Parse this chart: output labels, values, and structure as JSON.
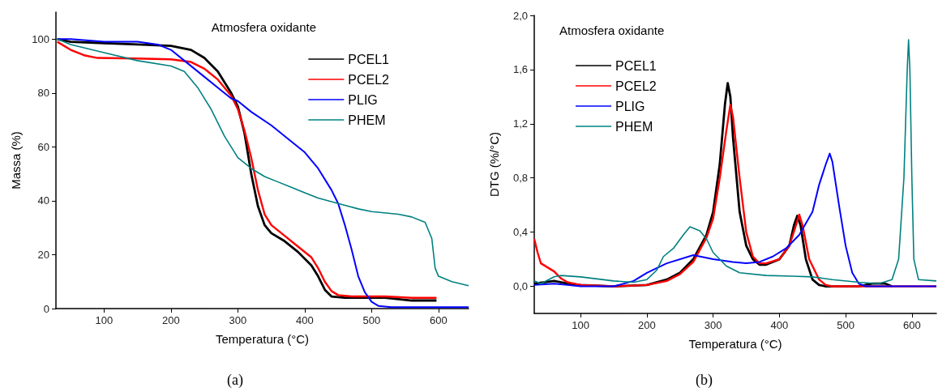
{
  "chart_data": [
    {
      "type": "line",
      "xlabel": "Temperatura (°C)",
      "ylabel": "Massa (%)",
      "annotations": [
        "Atmosfera oxidante",
        "(a)"
      ],
      "xlim": [
        28,
        645
      ],
      "ylim": [
        0,
        110
      ],
      "xticks": [
        100,
        200,
        300,
        400,
        500,
        600
      ],
      "yticks": [
        0,
        20,
        40,
        60,
        80,
        100
      ],
      "grid": false,
      "legend": "top right",
      "marker": "none",
      "line_style": "solid",
      "series": [
        {
          "name": "PCEL1",
          "color": "#000000",
          "x": [
            30,
            50,
            100,
            150,
            200,
            230,
            250,
            270,
            290,
            300,
            310,
            320,
            330,
            340,
            350,
            370,
            390,
            410,
            420,
            430,
            440,
            460,
            500,
            520,
            560,
            597
          ],
          "values": [
            100,
            99,
            98.5,
            98,
            97.5,
            96,
            93,
            88,
            80,
            75,
            65,
            50,
            38,
            31,
            28,
            25,
            21,
            16,
            12,
            7,
            4.5,
            4,
            4,
            4,
            3,
            3
          ]
        },
        {
          "name": "PCEL2",
          "color": "#ff0000",
          "x": [
            30,
            50,
            70,
            90,
            150,
            200,
            230,
            250,
            270,
            290,
            300,
            310,
            320,
            330,
            340,
            350,
            370,
            390,
            410,
            420,
            430,
            440,
            450,
            470,
            520,
            560,
            597
          ],
          "values": [
            99,
            96,
            94,
            93,
            92.8,
            92.5,
            91.5,
            89,
            85,
            79,
            74,
            66,
            56,
            44,
            35,
            31,
            27,
            23,
            19,
            15,
            10,
            6.5,
            5,
            4.5,
            4.5,
            4,
            4
          ]
        },
        {
          "name": "PLIG",
          "color": "#0000ff",
          "x": [
            30,
            50,
            100,
            150,
            180,
            200,
            220,
            250,
            270,
            290,
            300,
            320,
            350,
            380,
            400,
            420,
            440,
            450,
            460,
            470,
            480,
            490,
            500,
            510,
            530,
            645
          ],
          "values": [
            100,
            100,
            99,
            99,
            98,
            96,
            92,
            86,
            82,
            78,
            77,
            73,
            68,
            62,
            58,
            52,
            44,
            39,
            31,
            22,
            12,
            6,
            2.5,
            1,
            0.5,
            0.5
          ]
        },
        {
          "name": "PHEM",
          "color": "#008080",
          "x": [
            30,
            50,
            100,
            150,
            200,
            220,
            240,
            260,
            280,
            300,
            320,
            340,
            360,
            380,
            400,
            420,
            450,
            480,
            500,
            540,
            560,
            580,
            590,
            595,
            600,
            620,
            645
          ],
          "values": [
            100,
            98,
            95,
            92,
            90,
            88,
            82,
            74,
            64,
            56,
            52,
            49,
            47,
            45,
            43,
            41,
            39,
            37,
            36,
            35,
            34,
            32,
            26,
            15,
            12,
            10,
            8.5
          ]
        }
      ]
    },
    {
      "type": "line",
      "xlabel": "Temperatura (°C)",
      "ylabel": "DTG (%/°C)",
      "annotations": [
        "Atmosfera oxidante",
        "(b)"
      ],
      "xlim": [
        30,
        637
      ],
      "ylim": [
        -0.2,
        2.0
      ],
      "xticks": [
        100,
        200,
        300,
        400,
        500,
        600
      ],
      "yticks": [
        {
          "value": 0,
          "label": "0,0"
        },
        {
          "value": 0.4,
          "label": "0,4"
        },
        {
          "value": 0.8,
          "label": "0,8"
        },
        {
          "value": 1.2,
          "label": "1,2"
        },
        {
          "value": 1.6,
          "label": "1,6"
        },
        {
          "value": 2.0,
          "label": "2,0"
        }
      ],
      "grid": false,
      "legend": "top left",
      "marker": "none",
      "line_style": "solid",
      "series": [
        {
          "name": "PCEL1",
          "color": "#000000",
          "x": [
            30,
            60,
            80,
            100,
            150,
            200,
            230,
            250,
            270,
            290,
            300,
            310,
            318,
            322,
            326,
            330,
            340,
            350,
            360,
            370,
            380,
            400,
            415,
            422,
            427,
            432,
            440,
            450,
            460,
            470,
            520,
            540,
            560,
            570
          ],
          "values": [
            0.02,
            0.04,
            0.02,
            0.01,
            0,
            0.01,
            0.05,
            0.1,
            0.2,
            0.38,
            0.55,
            0.9,
            1.35,
            1.5,
            1.4,
            1.1,
            0.55,
            0.3,
            0.2,
            0.16,
            0.16,
            0.2,
            0.3,
            0.45,
            0.52,
            0.45,
            0.2,
            0.05,
            0.01,
            0,
            0,
            0.02,
            0.02,
            0
          ]
        },
        {
          "name": "PCEL2",
          "color": "#ff0000",
          "x": [
            30,
            35,
            40,
            50,
            60,
            70,
            80,
            100,
            150,
            200,
            230,
            250,
            270,
            290,
            300,
            310,
            320,
            326,
            330,
            340,
            350,
            360,
            370,
            380,
            400,
            415,
            425,
            430,
            435,
            445,
            460,
            470,
            480,
            637
          ],
          "values": [
            0.35,
            0.25,
            0.17,
            0.14,
            0.11,
            0.06,
            0.03,
            0.01,
            0,
            0.01,
            0.04,
            0.09,
            0.18,
            0.36,
            0.5,
            0.8,
            1.15,
            1.34,
            1.25,
            0.8,
            0.4,
            0.22,
            0.17,
            0.17,
            0.2,
            0.3,
            0.45,
            0.53,
            0.45,
            0.2,
            0.05,
            0.01,
            0,
            0
          ]
        },
        {
          "name": "PLIG",
          "color": "#0000ff",
          "x": [
            30,
            60,
            80,
            100,
            150,
            180,
            200,
            230,
            270,
            300,
            330,
            350,
            370,
            390,
            410,
            430,
            450,
            460,
            470,
            476,
            480,
            490,
            500,
            510,
            520,
            530,
            637
          ],
          "values": [
            0.01,
            0.02,
            0.01,
            0,
            0,
            0.04,
            0.1,
            0.17,
            0.23,
            0.2,
            0.18,
            0.17,
            0.18,
            0.22,
            0.28,
            0.38,
            0.55,
            0.75,
            0.9,
            0.98,
            0.92,
            0.6,
            0.3,
            0.1,
            0.02,
            0,
            0
          ]
        },
        {
          "name": "PHEM",
          "color": "#008080",
          "x": [
            30,
            40,
            60,
            70,
            100,
            150,
            180,
            200,
            215,
            225,
            240,
            255,
            265,
            280,
            290,
            300,
            320,
            340,
            380,
            420,
            450,
            480,
            520,
            550,
            570,
            580,
            588,
            593,
            595,
            597,
            600,
            603,
            610,
            637
          ],
          "values": [
            0.04,
            0.02,
            0.07,
            0.08,
            0.07,
            0.04,
            0.03,
            0.05,
            0.12,
            0.22,
            0.28,
            0.38,
            0.44,
            0.41,
            0.35,
            0.25,
            0.15,
            0.1,
            0.08,
            0.075,
            0.07,
            0.05,
            0.03,
            0.02,
            0.05,
            0.2,
            0.8,
            1.6,
            1.82,
            1.6,
            0.8,
            0.2,
            0.05,
            0.04
          ]
        }
      ]
    }
  ]
}
